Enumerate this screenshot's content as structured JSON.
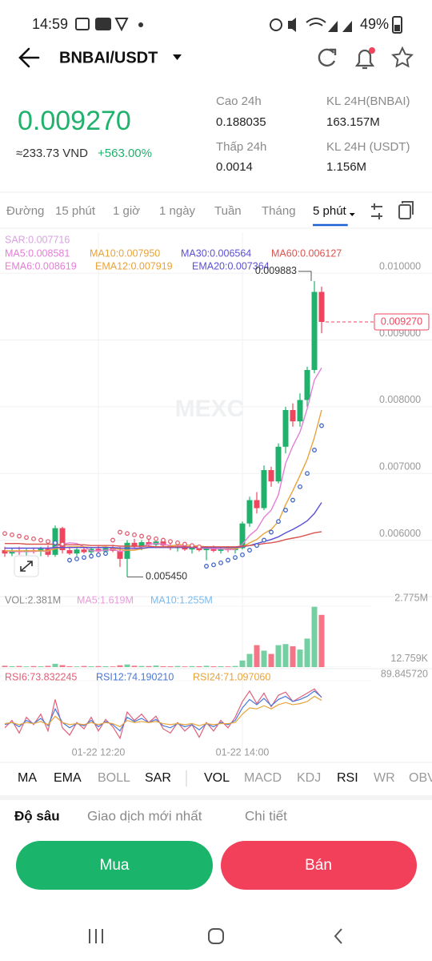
{
  "status_bar": {
    "time": "14:59",
    "battery": "49%"
  },
  "header": {
    "pair": "BNBAI/USDT"
  },
  "price": {
    "last": "0.009270",
    "fiat": "≈233.73 VND",
    "change": "+563.00%"
  },
  "stats": [
    {
      "label": "Cao 24h",
      "value": "0.188035"
    },
    {
      "label": "KL 24H(BNBAI)",
      "value": "163.157M"
    },
    {
      "label": "Thấp 24h",
      "value": "0.0014"
    },
    {
      "label": "KL 24H (USDT)",
      "value": "1.156M"
    }
  ],
  "timeframes": {
    "items": [
      "Đường",
      "15 phút",
      "1 giờ",
      "1 ngày",
      "Tuần",
      "Tháng",
      "5 phút"
    ],
    "active": 6
  },
  "indicators": {
    "items": [
      "MA",
      "EMA",
      "BOLL",
      "SAR",
      "VOL",
      "MACD",
      "KDJ",
      "RSI",
      "WR",
      "OBV"
    ],
    "active": [
      0,
      1,
      3,
      4,
      7
    ]
  },
  "tabs": {
    "items": [
      "Độ sâu",
      "Giao dịch mới nhất",
      "Chi tiết"
    ],
    "active": 0
  },
  "buttons": {
    "buy": "Mua",
    "sell": "Bán"
  },
  "chart_data": [
    {
      "type": "candlestick",
      "watermark": "MEXC",
      "up_color": "#20b26c",
      "down_color": "#f0455f",
      "ylim": [
        0.00525,
        0.01005
      ],
      "yticks": [
        {
          "value": 0.01,
          "label": "0.010000"
        },
        {
          "value": 0.009,
          "label": "0.009000"
        },
        {
          "value": 0.008,
          "label": "0.008000"
        },
        {
          "value": 0.007,
          "label": "0.007000"
        },
        {
          "value": 0.006,
          "label": "0.006000"
        }
      ],
      "open": [
        0.00585,
        0.0058,
        0.00584,
        0.00582,
        0.00585,
        0.00583,
        0.00587,
        0.00578,
        0.00618,
        0.00585,
        0.0058,
        0.00586,
        0.00582,
        0.00587,
        0.00583,
        0.00588,
        0.00584,
        0.00572,
        0.00596,
        0.0059,
        0.00597,
        0.00593,
        0.00598,
        0.00592,
        0.00588,
        0.0059,
        0.00586,
        0.00589,
        0.00585,
        0.00588,
        0.00584,
        0.00587,
        0.00585,
        0.00588,
        0.00625,
        0.0066,
        0.00648,
        0.00705,
        0.00688,
        0.0074,
        0.00795,
        0.00778,
        0.0081,
        0.00855,
        0.00972
      ],
      "high": [
        0.0059,
        0.00588,
        0.0059,
        0.00587,
        0.00589,
        0.0059,
        0.00592,
        0.00622,
        0.0062,
        0.0059,
        0.00588,
        0.0059,
        0.00589,
        0.00592,
        0.0059,
        0.00593,
        0.0059,
        0.006,
        0.00602,
        0.006,
        0.00602,
        0.006,
        0.00603,
        0.00597,
        0.00594,
        0.00594,
        0.00592,
        0.00593,
        0.00591,
        0.00592,
        0.0059,
        0.00591,
        0.0059,
        0.00628,
        0.00665,
        0.00672,
        0.00712,
        0.0071,
        0.00745,
        0.008,
        0.00805,
        0.0082,
        0.0086,
        0.009883,
        0.0098
      ],
      "low": [
        0.00575,
        0.00576,
        0.00578,
        0.00577,
        0.0058,
        0.00576,
        0.00575,
        0.00575,
        0.0058,
        0.00578,
        0.00576,
        0.0058,
        0.00578,
        0.0058,
        0.00578,
        0.00582,
        0.0056,
        0.00545,
        0.00588,
        0.00585,
        0.0059,
        0.00588,
        0.0059,
        0.00585,
        0.00583,
        0.00584,
        0.0058,
        0.00583,
        0.0057,
        0.00582,
        0.0058,
        0.00582,
        0.0058,
        0.00586,
        0.0062,
        0.0064,
        0.00645,
        0.0068,
        0.00685,
        0.0073,
        0.0077,
        0.0077,
        0.008,
        0.0085,
        0.0091
      ],
      "close": [
        0.0058,
        0.00584,
        0.00582,
        0.00585,
        0.00583,
        0.00587,
        0.00578,
        0.00618,
        0.00585,
        0.0058,
        0.00586,
        0.00582,
        0.00587,
        0.00583,
        0.00588,
        0.00584,
        0.00572,
        0.00596,
        0.0059,
        0.00597,
        0.00593,
        0.00598,
        0.00592,
        0.00588,
        0.0059,
        0.00586,
        0.00589,
        0.00585,
        0.00588,
        0.00584,
        0.00587,
        0.00585,
        0.00588,
        0.00625,
        0.0066,
        0.00648,
        0.00705,
        0.00688,
        0.0074,
        0.00795,
        0.00778,
        0.0081,
        0.00855,
        0.00972,
        0.00927
      ],
      "series": [
        {
          "name": "MA5:0.008581",
          "color": "#e37fd6",
          "values": [
            0.00584,
            0.00583,
            0.00583,
            0.00583,
            0.00583,
            0.00584,
            0.00583,
            0.0059,
            0.00594,
            0.00596,
            0.00595,
            0.0059,
            0.00584,
            0.00584,
            0.00585,
            0.00586,
            0.00583,
            0.00585,
            0.00586,
            0.0059,
            0.00594,
            0.00595,
            0.00594,
            0.00592,
            0.00592,
            0.00591,
            0.00589,
            0.00588,
            0.00588,
            0.00587,
            0.00587,
            0.00586,
            0.00586,
            0.00594,
            0.00607,
            0.00616,
            0.00634,
            0.00645,
            0.00668,
            0.00715,
            0.00741,
            0.00762,
            0.00797,
            0.0084,
            0.008581
          ]
        },
        {
          "name": "MA10:0.007950",
          "color": "#e8a33a",
          "values": [
            0.00584,
            0.00584,
            0.00584,
            0.00584,
            0.00584,
            0.00584,
            0.00584,
            0.00587,
            0.00589,
            0.0059,
            0.0059,
            0.0059,
            0.00589,
            0.00589,
            0.0059,
            0.00588,
            0.00586,
            0.00585,
            0.00585,
            0.00587,
            0.00589,
            0.0059,
            0.0059,
            0.00591,
            0.00593,
            0.00593,
            0.00592,
            0.00591,
            0.0059,
            0.00589,
            0.00589,
            0.00588,
            0.00587,
            0.0059,
            0.00596,
            0.00601,
            0.0061,
            0.00616,
            0.00628,
            0.00653,
            0.00674,
            0.00697,
            0.00721,
            0.00754,
            0.00795
          ]
        },
        {
          "name": "MA30:0.006564",
          "color": "#5b4fd6",
          "values": [
            0.00588,
            0.00588,
            0.00588,
            0.00588,
            0.00588,
            0.00588,
            0.00588,
            0.00589,
            0.00589,
            0.00589,
            0.00589,
            0.00589,
            0.00589,
            0.00589,
            0.00589,
            0.00589,
            0.00588,
            0.00588,
            0.00588,
            0.00588,
            0.00589,
            0.00589,
            0.00589,
            0.00589,
            0.00589,
            0.00589,
            0.00589,
            0.00589,
            0.00589,
            0.00589,
            0.00589,
            0.00589,
            0.00589,
            0.0059,
            0.00592,
            0.00595,
            0.00598,
            0.00601,
            0.00605,
            0.00611,
            0.00616,
            0.00622,
            0.00629,
            0.0064,
            0.006564
          ]
        },
        {
          "name": "MA60:0.006127",
          "color": "#d9534f",
          "values": [
            0.00595,
            0.00595,
            0.00595,
            0.00594,
            0.00594,
            0.00594,
            0.00594,
            0.00594,
            0.00593,
            0.00593,
            0.00593,
            0.00593,
            0.00592,
            0.00592,
            0.00592,
            0.00592,
            0.00591,
            0.00591,
            0.00591,
            0.00591,
            0.00591,
            0.0059,
            0.0059,
            0.0059,
            0.0059,
            0.0059,
            0.0059,
            0.0059,
            0.0059,
            0.0059,
            0.0059,
            0.0059,
            0.0059,
            0.00591,
            0.00592,
            0.00593,
            0.00595,
            0.00596,
            0.00598,
            0.00601,
            0.00603,
            0.00605,
            0.00608,
            0.00611,
            0.006127
          ]
        }
      ],
      "sar": {
        "name": "SAR:0.007716",
        "color": "#d9a2e0",
        "above_color": "#e05d6f",
        "below_color": "#3f66c9",
        "values": [
          0.0061,
          0.00608,
          0.00606,
          0.00604,
          0.00602,
          0.006,
          0.00598,
          0.00596,
          0.00594,
          0.0057,
          0.00572,
          0.00574,
          0.00576,
          0.00578,
          0.0058,
          0.006,
          0.00612,
          0.0061,
          0.00608,
          0.00606,
          0.00604,
          0.00602,
          0.006,
          0.00598,
          0.00596,
          0.00594,
          0.00592,
          0.0059,
          0.00561,
          0.00563,
          0.00566,
          0.0057,
          0.00574,
          0.00578,
          0.00585,
          0.00592,
          0.006,
          0.00612,
          0.00628,
          0.00645,
          0.0066,
          0.0068,
          0.007,
          0.00735,
          0.007716
        ]
      },
      "ema_legend": [
        {
          "name": "EMA6:0.008619",
          "color": "#e37fd6"
        },
        {
          "name": "EMA12:0.007919",
          "color": "#e8a33a"
        },
        {
          "name": "EMA20:0.007364",
          "color": "#5b4fd6"
        }
      ],
      "high_label": {
        "value": 0.009883,
        "label": "0.009883"
      },
      "low_label": {
        "value": 0.00545,
        "label": "0.005450"
      },
      "last_price": {
        "value": 0.00927,
        "label": "0.009270"
      }
    },
    {
      "type": "bar",
      "name": "VOL:2.381M",
      "up_color": "#74d0a3",
      "down_color": "#f47586",
      "ylim": [
        0,
        2775000
      ],
      "yticks": [
        {
          "value": 2775000,
          "label": "2.775M"
        },
        {
          "value": 12759,
          "label": "12.759K"
        }
      ],
      "values": [
        60000,
        40000,
        50000,
        30000,
        45000,
        35000,
        55000,
        150000,
        90000,
        40000,
        30000,
        50000,
        35000,
        45000,
        40000,
        30000,
        80000,
        120000,
        60000,
        50000,
        45000,
        70000,
        40000,
        35000,
        50000,
        30000,
        45000,
        40000,
        60000,
        35000,
        40000,
        30000,
        50000,
        300000,
        600000,
        1000000,
        750000,
        600000,
        1000000,
        1050000,
        950000,
        800000,
        1300000,
        2750000,
        2381000
      ],
      "legend": [
        {
          "name": "MA5:1.619M",
          "color": "#e89ad9"
        },
        {
          "name": "MA10:1.255M",
          "color": "#7bb9ea"
        }
      ]
    },
    {
      "type": "line",
      "ylim": [
        25,
        89.84572
      ],
      "yticks": [
        {
          "value": 89.84572,
          "label": "89.845720"
        }
      ],
      "categories": [
        null,
        null,
        null,
        null,
        null,
        null,
        null,
        null,
        null,
        null,
        null,
        null,
        null,
        "01-22 12:20",
        null,
        null,
        null,
        null,
        null,
        null,
        null,
        null,
        null,
        null,
        null,
        null,
        null,
        null,
        null,
        null,
        null,
        null,
        null,
        "01-22 14:00",
        null,
        null,
        null,
        null,
        null,
        null,
        null,
        null,
        null,
        null,
        null
      ],
      "series": [
        {
          "name": "RSI6:73.832245",
          "color": "#e0607a",
          "values": [
            45,
            52,
            40,
            55,
            48,
            58,
            42,
            72,
            45,
            38,
            50,
            44,
            55,
            42,
            53,
            46,
            35,
            60,
            52,
            58,
            50,
            56,
            44,
            40,
            50,
            42,
            48,
            36,
            50,
            42,
            52,
            45,
            55,
            70,
            80,
            68,
            78,
            65,
            76,
            79,
            70,
            74,
            78,
            82,
            73.832245
          ]
        },
        {
          "name": "RSI12:74.190210",
          "color": "#4a78d8",
          "values": [
            48,
            50,
            46,
            52,
            49,
            54,
            47,
            63,
            50,
            45,
            49,
            47,
            52,
            46,
            51,
            48,
            42,
            55,
            51,
            54,
            50,
            53,
            47,
            45,
            49,
            46,
            48,
            43,
            49,
            46,
            50,
            48,
            52,
            64,
            72,
            67,
            73,
            66,
            72,
            75,
            70,
            72,
            75,
            80,
            74.19021
          ]
        },
        {
          "name": "RSI24:71.097060",
          "color": "#e8a33a",
          "values": [
            49,
            50,
            48,
            50,
            49,
            51,
            48,
            56,
            50,
            48,
            49,
            48,
            50,
            48,
            50,
            49,
            46,
            52,
            50,
            51,
            50,
            51,
            49,
            48,
            49,
            48,
            49,
            47,
            49,
            48,
            49,
            49,
            50,
            58,
            64,
            63,
            66,
            63,
            67,
            69,
            67,
            68,
            70,
            75,
            71.09706
          ]
        }
      ]
    }
  ]
}
